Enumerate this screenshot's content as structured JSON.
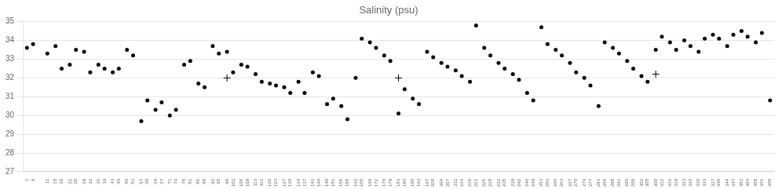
{
  "chart_data": {
    "type": "scatter",
    "title": "Salinity (psu)",
    "xlim": [
      -1,
      367
    ],
    "xticks": [
      1,
      4,
      11,
      15,
      18,
      22,
      25,
      29,
      32,
      36,
      39,
      43,
      46,
      50,
      53,
      57,
      60,
      64,
      67,
      71,
      74,
      78,
      81,
      85,
      88,
      92,
      95,
      99,
      102,
      106,
      109,
      113,
      116,
      120,
      123,
      127,
      130,
      134,
      137,
      141,
      144,
      148,
      151,
      155,
      158,
      162,
      165,
      169,
      172,
      176,
      179,
      183,
      186,
      190,
      193,
      197,
      200,
      204,
      207,
      211,
      214,
      218,
      221,
      225,
      228,
      232,
      235,
      239,
      242,
      246,
      249,
      253,
      256,
      260,
      263,
      267,
      270,
      274,
      277,
      281,
      284,
      288,
      291,
      295,
      298,
      302,
      305,
      309,
      312,
      316,
      319,
      323,
      326,
      330,
      333,
      337,
      340,
      344,
      347,
      351,
      354,
      358,
      361,
      365
    ],
    "ylim": [
      27,
      35
    ],
    "yticks": [
      27,
      28,
      29,
      30,
      31,
      32,
      33,
      34,
      35
    ],
    "grid": "y",
    "series": [
      {
        "color": "black",
        "marker": "circle",
        "x": [
          1,
          4,
          11,
          15,
          18,
          22,
          25,
          29,
          32,
          36,
          39,
          43,
          46,
          50,
          53,
          57,
          60,
          64,
          67,
          71,
          74,
          78,
          81,
          85,
          88,
          92,
          95,
          99,
          102,
          106,
          109,
          113,
          116,
          120,
          123,
          127,
          130,
          134,
          137,
          141,
          144,
          148,
          151,
          155,
          158,
          162,
          165,
          169,
          172,
          176,
          179,
          183,
          186,
          190,
          193,
          197,
          200,
          204,
          207,
          211,
          214,
          218,
          221,
          225,
          228,
          232,
          235,
          239,
          242,
          246,
          249,
          253,
          256,
          260,
          263,
          267,
          270,
          274,
          277,
          281,
          284,
          288,
          291,
          295,
          298,
          302,
          305,
          309,
          312,
          316,
          319,
          323,
          326,
          330,
          333,
          337,
          340,
          344,
          347,
          351,
          354,
          358,
          361,
          365
        ],
        "values": [
          33.6,
          33.8,
          33.3,
          33.7,
          32.5,
          32.7,
          33.5,
          33.4,
          32.3,
          32.7,
          32.5,
          32.3,
          32.5,
          33.5,
          33.2,
          29.7,
          30.8,
          30.3,
          30.7,
          30.0,
          30.3,
          32.7,
          32.9,
          31.7,
          31.5,
          33.7,
          33.3,
          33.4,
          32.3,
          32.7,
          32.6,
          32.2,
          31.8,
          31.7,
          31.6,
          31.5,
          31.2,
          31.8,
          31.2,
          32.3,
          32.1,
          30.6,
          30.9,
          30.5,
          29.8,
          32.0,
          34.1,
          33.9,
          33.6,
          33.2,
          32.9,
          30.1,
          31.4,
          30.9,
          30.6,
          33.4,
          33.1,
          32.8,
          32.6,
          32.4,
          32.1,
          31.8,
          34.8,
          33.6,
          33.2,
          32.8,
          32.5,
          32.2,
          31.9,
          31.2,
          30.8,
          34.7,
          33.8,
          33.5,
          33.2,
          32.8,
          32.3,
          32.0,
          31.6,
          30.5,
          33.9,
          33.6,
          33.3,
          32.9,
          32.5,
          32.1,
          31.8,
          33.5,
          34.2,
          33.9,
          33.5,
          34.0,
          33.7,
          33.4,
          34.1,
          34.3,
          34.1,
          33.7,
          34.3,
          34.5,
          34.2,
          33.9,
          34.4,
          30.8
        ]
      },
      {
        "color": "black",
        "marker": "cross",
        "x": [
          99,
          183,
          309
        ],
        "values": [
          32.0,
          32.0,
          32.2
        ]
      }
    ]
  }
}
